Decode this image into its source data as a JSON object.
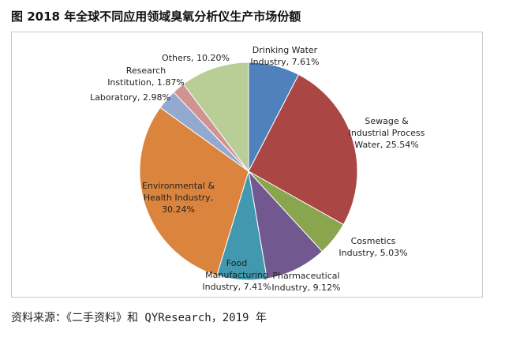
{
  "figure": {
    "title": "图 2018 年全球不同应用领域臭氧分析仪生产市场份额",
    "source": "资料来源：《二手资料》和 QYResearch，2019 年"
  },
  "chart_data": {
    "type": "pie",
    "title": "2018 年全球不同应用领域臭氧分析仪生产市场份额",
    "unit": "%",
    "start": "12 o'clock",
    "direction": "clockwise",
    "slices": [
      {
        "name": "Drinking Water Industry",
        "value": 7.61,
        "color": "#4f81bd",
        "label_lines": [
          "Drinking Water",
          "Industry, 7.61%"
        ]
      },
      {
        "name": "Sewage & Industrial Process Water",
        "value": 25.54,
        "color": "#aa4643",
        "label_lines": [
          "Sewage &",
          "Industrial Process",
          "Water, 25.54%"
        ]
      },
      {
        "name": "Cosmetics Industry",
        "value": 5.03,
        "color": "#89a54e",
        "label_lines": [
          "Cosmetics",
          "Industry, 5.03%"
        ]
      },
      {
        "name": "Pharmaceutical Industry",
        "value": 9.12,
        "color": "#71588f",
        "label_lines": [
          "Pharmaceutical",
          "Industry, 9.12%"
        ]
      },
      {
        "name": "Food Manufacturing Industry",
        "value": 7.41,
        "color": "#4198af",
        "label_lines": [
          "Food",
          "Manufacturing",
          "Industry, 7.41%"
        ]
      },
      {
        "name": "Environmental & Health Industry",
        "value": 30.24,
        "color": "#db843d",
        "label_lines": [
          "Environmental &",
          "Health Industry,",
          "30.24%"
        ]
      },
      {
        "name": "Laboratory",
        "value": 2.98,
        "color": "#93a9cf",
        "label_lines": [
          "Laboratory, 2.98%"
        ]
      },
      {
        "name": "Research Institution",
        "value": 1.87,
        "color": "#d19392",
        "label_lines": [
          "Research",
          "Institution, 1.87%"
        ]
      },
      {
        "name": "Others",
        "value": 10.2,
        "color": "#b9cd96",
        "label_lines": [
          "Others, 10.20%"
        ]
      }
    ]
  }
}
